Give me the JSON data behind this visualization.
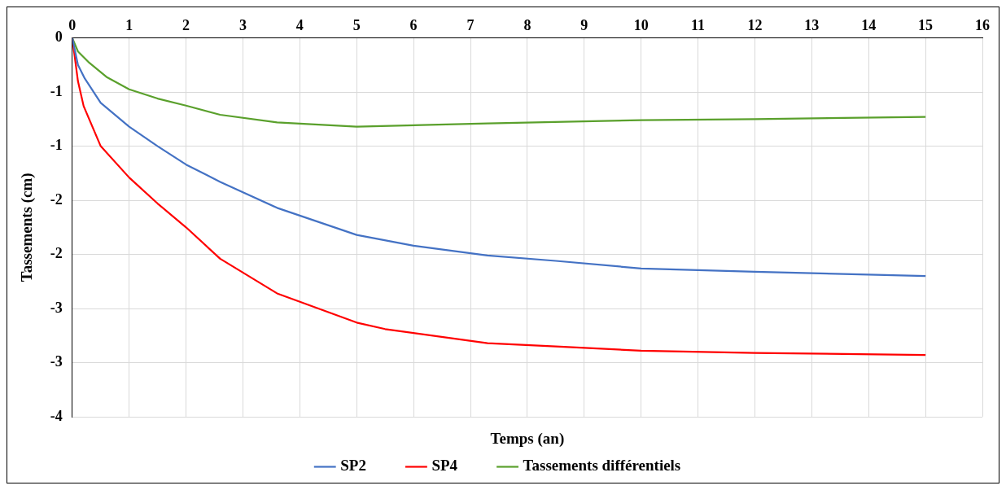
{
  "chart_data": {
    "type": "line",
    "xlabel": "Temps (an)",
    "ylabel": "Tassements (cm)",
    "xlim": [
      0,
      16
    ],
    "xticks": [
      0,
      1,
      2,
      3,
      4,
      5,
      6,
      7,
      8,
      9,
      10,
      11,
      12,
      13,
      14,
      15,
      16
    ],
    "ylim": [
      -3.5,
      0
    ],
    "yticks": [
      0,
      {
        "value": -0.5,
        "label": "-1"
      },
      -1,
      {
        "value": -1.5,
        "label": "-2"
      },
      -2,
      {
        "value": -2.5,
        "label": "-3"
      },
      -3,
      {
        "value": -3.5,
        "label": "-4"
      }
    ],
    "grid": true,
    "legend": "bottom",
    "marker": "none",
    "line_style": "solid",
    "series": [
      {
        "name": "SP2",
        "color": "#4472c4",
        "x": [
          0,
          0.1,
          0.22,
          0.5,
          1,
          1.5,
          2,
          2.6,
          3.6,
          5,
          6,
          7.3,
          8.5,
          10,
          12,
          15
        ],
        "values": [
          0,
          -0.25,
          -0.375,
          -0.6,
          -0.82,
          -1.0,
          -1.17,
          -1.33,
          -1.57,
          -1.82,
          -1.92,
          -2.01,
          -2.06,
          -2.13,
          -2.16,
          -2.2
        ]
      },
      {
        "name": "SP4",
        "color": "#ff0000",
        "x": [
          0,
          0.1,
          0.2,
          0.5,
          1,
          1.5,
          2,
          2.6,
          3.6,
          5,
          5.5,
          7.3,
          8.5,
          10,
          12,
          15
        ],
        "values": [
          0,
          -0.4,
          -0.63,
          -1.0,
          -1.29,
          -1.53,
          -1.75,
          -2.04,
          -2.36,
          -2.63,
          -2.69,
          -2.82,
          -2.85,
          -2.89,
          -2.91,
          -2.93
        ]
      },
      {
        "name": "Tassements différentiels",
        "color": "#5aa02c",
        "x": [
          0,
          0.1,
          0.3,
          0.6,
          1,
          1.5,
          2,
          2.6,
          3.6,
          5,
          7.3,
          10,
          12,
          15
        ],
        "values": [
          0,
          -0.125,
          -0.23,
          -0.36,
          -0.475,
          -0.56,
          -0.625,
          -0.71,
          -0.78,
          -0.82,
          -0.79,
          -0.76,
          -0.75,
          -0.73
        ]
      }
    ]
  }
}
